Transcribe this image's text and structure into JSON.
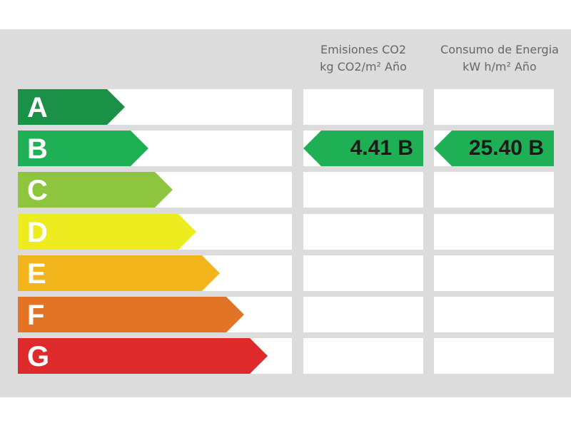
{
  "headers": {
    "co2_line1": "Emisiones CO2",
    "co2_line2": "kg CO2/m² Año",
    "energy_line1": "Consumo de Energia",
    "energy_line2": "kW h/m² Año"
  },
  "classes": [
    {
      "letter": "A",
      "color": "#1a9147"
    },
    {
      "letter": "B",
      "color": "#1fb055"
    },
    {
      "letter": "C",
      "color": "#8dc53e"
    },
    {
      "letter": "D",
      "color": "#ecec1e"
    },
    {
      "letter": "E",
      "color": "#f2b51b"
    },
    {
      "letter": "F",
      "color": "#e37426"
    },
    {
      "letter": "G",
      "color": "#df2a2b"
    }
  ],
  "ratings": {
    "co2": {
      "value": "4.41 B",
      "class_index": 1,
      "color": "#1fb055"
    },
    "energy": {
      "value": "25.40 B",
      "class_index": 1,
      "color": "#1fb055"
    }
  }
}
